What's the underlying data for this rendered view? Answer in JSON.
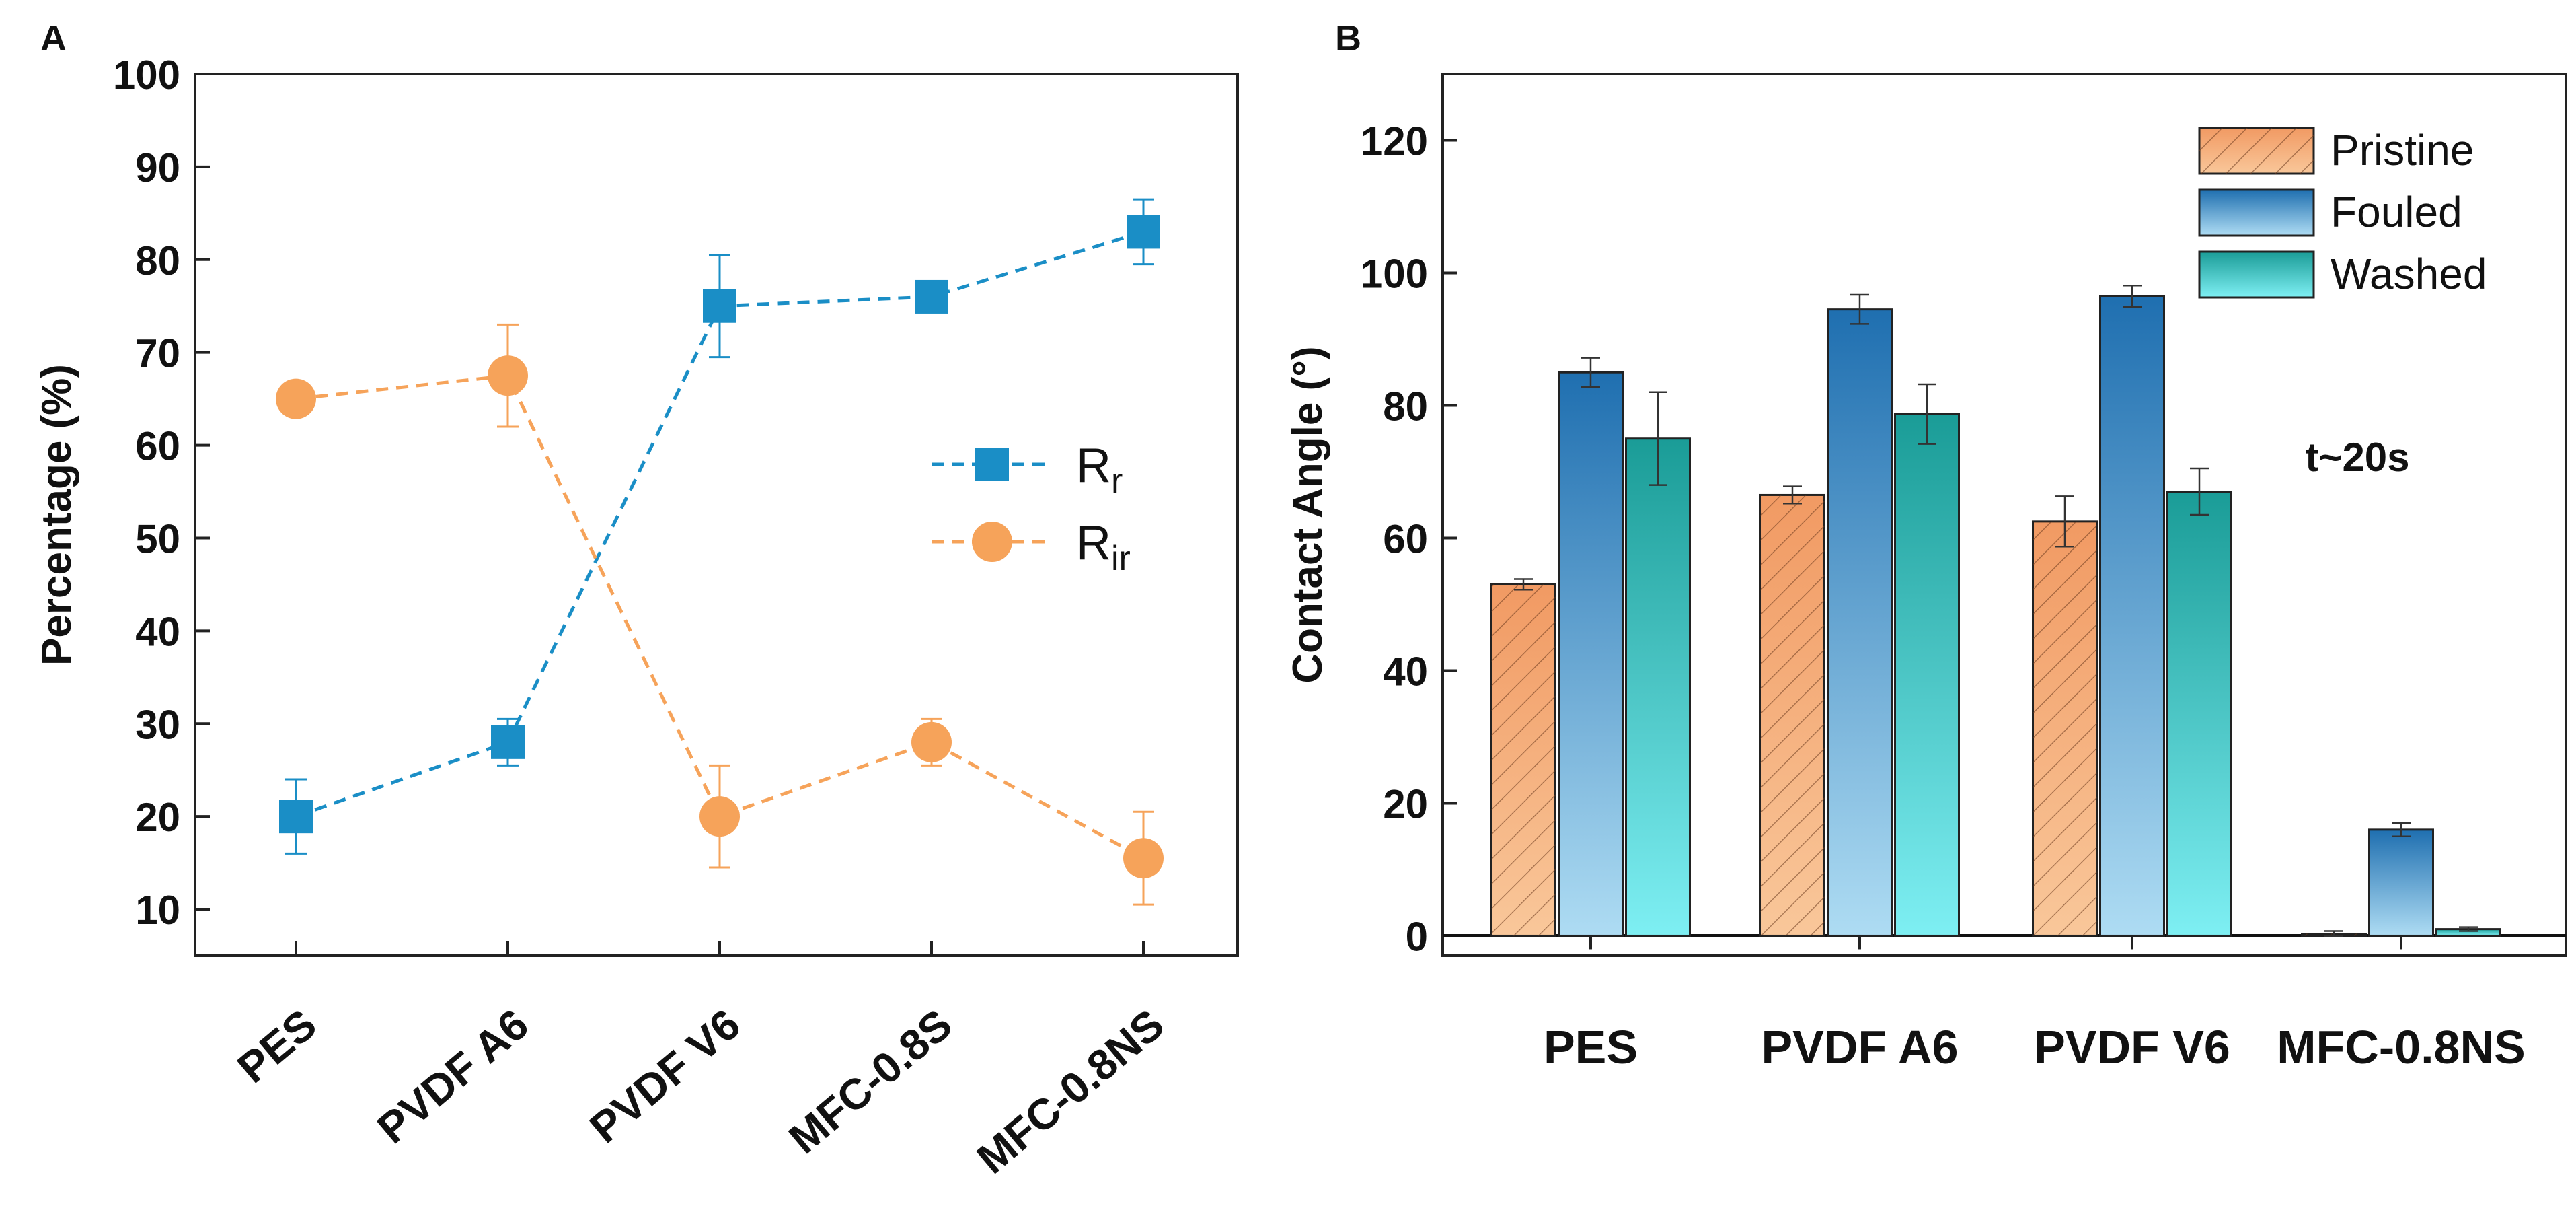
{
  "chart_data": [
    {
      "panel": "A",
      "type": "line",
      "ylabel": "Percentage (%)",
      "ylim": [
        5,
        100
      ],
      "yticks": [
        10,
        20,
        30,
        40,
        50,
        60,
        70,
        80,
        90,
        100
      ],
      "categories": [
        "PES",
        "PVDF A6",
        "PVDF V6",
        "MFC-0.8S",
        "MFC-0.8NS"
      ],
      "series": [
        {
          "name": "R",
          "subscript": "r",
          "color": "#1a8ec6",
          "marker": "square",
          "values": [
            20,
            28,
            75,
            76,
            83
          ],
          "errors": [
            4,
            2.5,
            5.5,
            1,
            3.5
          ]
        },
        {
          "name": "R",
          "subscript": "ir",
          "color": "#f6a35a",
          "marker": "circle",
          "values": [
            65,
            67.5,
            20,
            28,
            15.5
          ],
          "errors": [
            0,
            5.5,
            5.5,
            2.5,
            5
          ]
        }
      ],
      "legend_position": "center-right"
    },
    {
      "panel": "B",
      "type": "bar",
      "ylabel": "Contact Angle (°)",
      "ylim": [
        -3,
        130
      ],
      "yticks": [
        0,
        20,
        40,
        60,
        80,
        100,
        120
      ],
      "categories": [
        "PES",
        "PVDF A6",
        "PVDF V6",
        "MFC-0.8NS"
      ],
      "series": [
        {
          "name": "Pristine",
          "color": "#f4a26a",
          "pattern": "hatched",
          "values": [
            53,
            66.5,
            62.5,
            0.3
          ],
          "errors": [
            0.8,
            1.3,
            3.8,
            0.4
          ]
        },
        {
          "name": "Fouled",
          "color": "#2f87c4",
          "values": [
            85,
            94.5,
            96.5,
            16
          ],
          "errors": [
            2.2,
            2.2,
            1.6,
            1
          ]
        },
        {
          "name": "Washed",
          "color": "#2cc7c3",
          "values": [
            75,
            78.7,
            67,
            1
          ],
          "errors": [
            7,
            4.5,
            3.5,
            0.3
          ]
        }
      ],
      "annotation": "t~20s",
      "legend_position": "top-right"
    }
  ]
}
